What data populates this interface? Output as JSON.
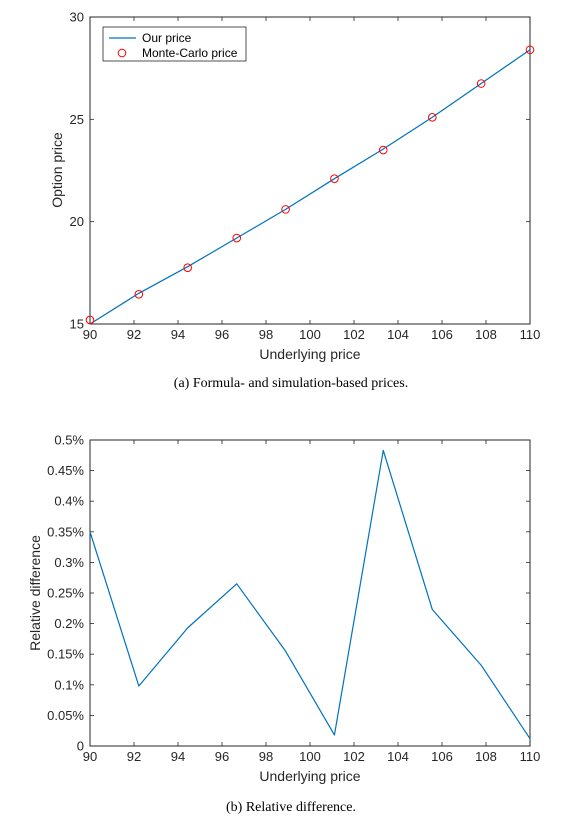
{
  "chart_data": [
    {
      "type": "line",
      "caption": "(a)  Formula- and simulation-based prices.",
      "xlabel": "Underlying price",
      "ylabel": "Option price",
      "xlim": [
        90,
        110
      ],
      "ylim": [
        15,
        30
      ],
      "xticks": [
        90,
        92,
        94,
        96,
        98,
        100,
        102,
        104,
        106,
        108,
        110
      ],
      "yticks": [
        15,
        20,
        25,
        30
      ],
      "ytick_labels": [
        "15",
        "20",
        "25",
        "30"
      ],
      "legend": "top-left",
      "series": [
        {
          "name": "Our price",
          "style": "line",
          "color": "#0072BD",
          "x": [
            90,
            92.22,
            94.44,
            96.67,
            98.89,
            101.11,
            103.33,
            105.56,
            107.78,
            110
          ],
          "y": [
            15.0,
            16.5,
            17.8,
            19.2,
            20.6,
            22.1,
            23.55,
            25.1,
            26.75,
            28.4
          ]
        },
        {
          "name": "Monte-Carlo price",
          "style": "markers",
          "color": "#FF0000",
          "x": [
            90,
            92.22,
            94.44,
            96.67,
            98.89,
            101.11,
            103.33,
            105.56,
            107.78,
            110
          ],
          "y": [
            15.2,
            16.45,
            17.75,
            19.2,
            20.6,
            22.1,
            23.5,
            25.1,
            26.75,
            28.4
          ]
        }
      ]
    },
    {
      "type": "line",
      "caption": "(b)  Relative difference.",
      "xlabel": "Underlying price",
      "ylabel": "Relative difference",
      "xlim": [
        90,
        110
      ],
      "ylim": [
        0,
        0.5
      ],
      "xticks": [
        90,
        92,
        94,
        96,
        98,
        100,
        102,
        104,
        106,
        108,
        110
      ],
      "yticks": [
        0,
        0.05,
        0.1,
        0.15,
        0.2,
        0.25,
        0.3,
        0.35,
        0.4,
        0.45,
        0.5
      ],
      "ytick_labels": [
        "0",
        "0.05%",
        "0.1%",
        "0.15%",
        "0.2%",
        "0.25%",
        "0.3%",
        "0.35%",
        "0.4%",
        "0.45%",
        "0.5%"
      ],
      "series": [
        {
          "color": "#0072BD",
          "x": [
            90,
            92.22,
            94.44,
            96.67,
            98.89,
            101.11,
            103.33,
            105.56,
            107.78,
            110
          ],
          "y": [
            0.35,
            0.098,
            0.193,
            0.265,
            0.155,
            0.018,
            0.483,
            0.223,
            0.132,
            0.012
          ]
        }
      ]
    }
  ]
}
